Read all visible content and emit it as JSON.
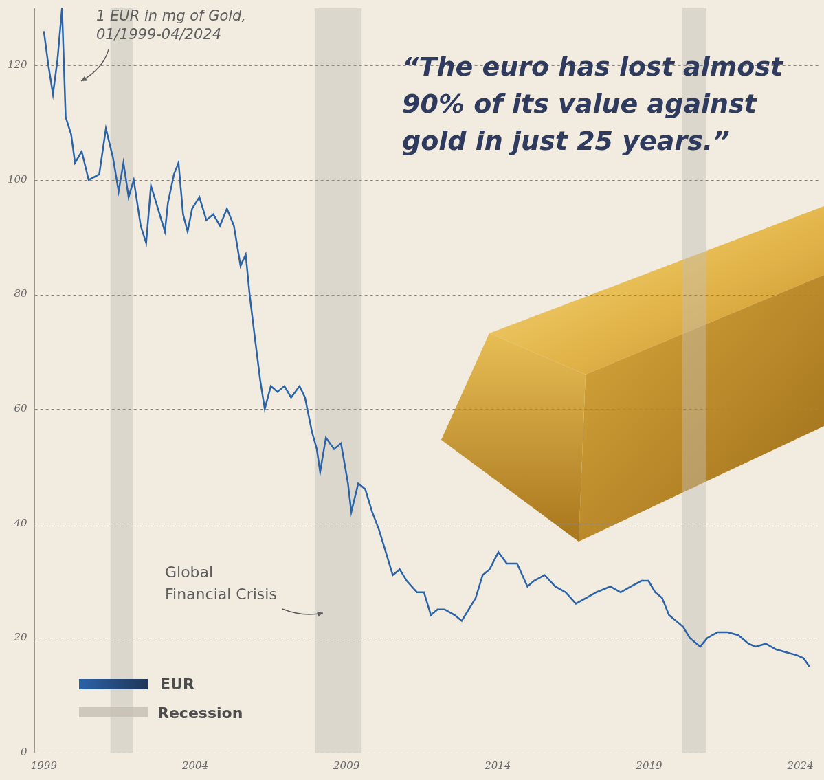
{
  "chart_data": {
    "type": "line",
    "title": "1 EUR in mg of Gold, 01/1999-04/2024",
    "subtitle": "“The euro has lost almost 90% of its value against gold in just 25 years.”",
    "annotations": [
      {
        "text": "Global Financial Crisis"
      }
    ],
    "x": [
      1999.0,
      1999.15,
      1999.3,
      1999.45,
      1999.6,
      1999.72,
      1999.9,
      2000.03,
      2000.25,
      2000.48,
      2000.83,
      2001.05,
      2001.28,
      2001.47,
      2001.63,
      2001.8,
      2001.97,
      2002.2,
      2002.38,
      2002.54,
      2002.77,
      2003.0,
      2003.1,
      2003.3,
      2003.45,
      2003.6,
      2003.75,
      2003.9,
      2004.14,
      2004.37,
      2004.6,
      2004.82,
      2005.05,
      2005.28,
      2005.5,
      2005.67,
      2005.8,
      2005.96,
      2006.15,
      2006.3,
      2006.5,
      2006.72,
      2006.95,
      2007.17,
      2007.45,
      2007.63,
      2007.86,
      2008.02,
      2008.13,
      2008.32,
      2008.59,
      2008.82,
      2009.05,
      2009.16,
      2009.39,
      2009.62,
      2009.85,
      2010.07,
      2010.3,
      2010.53,
      2010.76,
      2010.99,
      2011.33,
      2011.56,
      2011.79,
      2012.01,
      2012.24,
      2012.58,
      2012.81,
      2013.04,
      2013.27,
      2013.5,
      2013.73,
      2014.02,
      2014.3,
      2014.64,
      2014.98,
      2015.2,
      2015.55,
      2015.9,
      2016.24,
      2016.58,
      2016.92,
      2017.26,
      2017.72,
      2018.06,
      2018.4,
      2018.75,
      2018.98,
      2019.2,
      2019.43,
      2019.66,
      2019.89,
      2020.12,
      2020.35,
      2020.69,
      2020.92,
      2021.26,
      2021.6,
      2021.95,
      2022.29,
      2022.52,
      2022.86,
      2023.2,
      2023.54,
      2023.88,
      2024.1,
      2024.3
    ],
    "series": [
      {
        "name": "EUR",
        "color": "#2b63a8",
        "values": [
          126,
          120,
          115,
          121,
          130,
          111,
          108,
          103,
          105,
          100,
          101,
          109,
          104,
          98,
          103,
          97,
          100,
          92,
          89,
          99,
          95,
          91,
          96,
          101,
          103,
          94,
          91,
          95,
          97,
          93,
          94,
          92,
          95,
          92,
          85,
          87,
          80,
          73,
          65,
          60,
          64,
          63,
          64,
          62,
          64,
          62,
          56,
          53,
          49,
          55,
          53,
          54,
          47,
          42,
          47,
          46,
          42,
          39,
          35,
          31,
          32,
          30,
          28,
          28,
          24,
          25,
          25,
          24,
          23,
          25,
          27,
          31,
          32,
          35,
          33,
          33,
          29,
          30,
          31,
          29,
          28,
          26,
          27,
          28,
          29,
          28,
          29,
          30,
          30,
          28,
          27,
          24,
          23,
          22,
          20,
          18.5,
          20,
          21,
          21,
          20.5,
          19,
          18.5,
          19,
          18,
          17.5,
          17,
          16.5,
          15
        ]
      }
    ],
    "recessions": {
      "name": "Recession",
      "color": "#c4beb3",
      "spans": [
        [
          2001.2,
          2001.95
        ],
        [
          2007.95,
          2009.5
        ],
        [
          2020.1,
          2020.9
        ]
      ]
    },
    "xlim": [
      1998.7,
      2024.6
    ],
    "xticks": [
      1999,
      2004,
      2009,
      2014,
      2019,
      2024
    ],
    "ylim": [
      0,
      130
    ],
    "yticks": [
      0,
      20,
      40,
      60,
      80,
      100,
      120
    ],
    "grid": "y",
    "legend": "lower left"
  }
}
